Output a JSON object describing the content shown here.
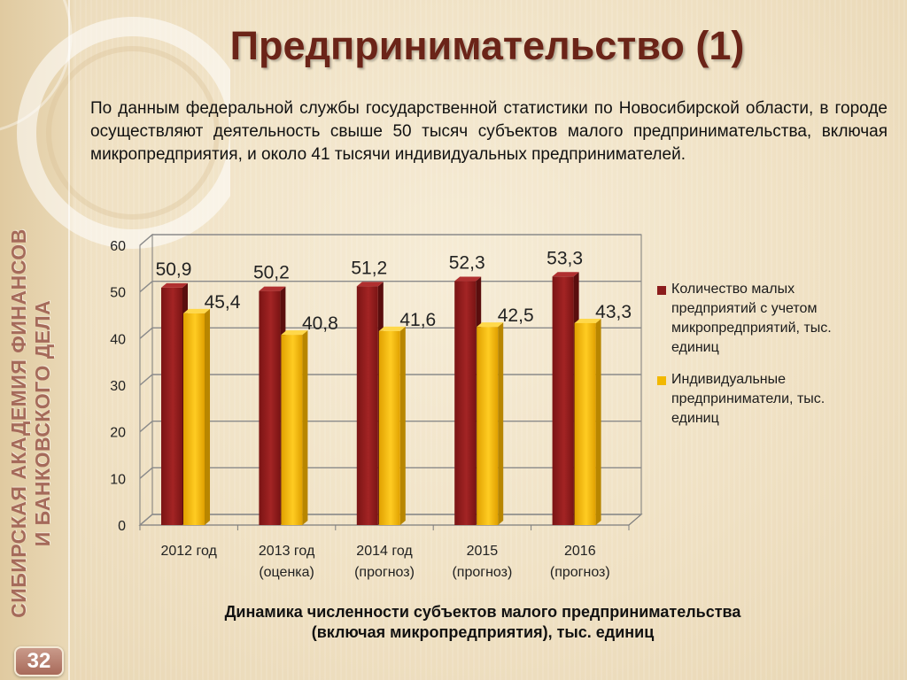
{
  "slide": {
    "title": "Предпринимательство (1)",
    "intro": "По данным федеральной службы государственной статистики по Новосибирской области, в городе осуществляют деятельность свыше 50 тысяч субъектов малого предпринимательства, включая микропредприятия, и около 41 тысячи индивидуальных предпринимателей.",
    "vertical_title_line1": "СИБИРСКАЯ АКАДЕМИЯ ФИНАНСОВ",
    "vertical_title_line2": "И БАНКОВСКОГО ДЕЛА",
    "page_number": "32",
    "caption_line1": "Динамика численности субъектов малого предпринимательства",
    "caption_line2": "(включая микропредприятия), тыс. единиц"
  },
  "colors": {
    "series1": "#8b1c1c",
    "series2": "#f2b800"
  },
  "chart_data": {
    "type": "bar",
    "categories": [
      [
        "2012 год"
      ],
      [
        "2013 год",
        "(оценка)"
      ],
      [
        "2014 год",
        "(прогноз)"
      ],
      [
        "2015",
        "(прогноз)"
      ],
      [
        "2016",
        "(прогноз)"
      ]
    ],
    "series": [
      {
        "name": "Количество малых предприятий с учетом микропредприятий, тыс. единиц",
        "values": [
          50.9,
          50.2,
          51.2,
          52.3,
          53.3
        ],
        "labels": [
          "50,9",
          "50,2",
          "51,2",
          "52,3",
          "53,3"
        ]
      },
      {
        "name": "Индивидуальные предприниматели, тыс. единиц",
        "values": [
          45.4,
          40.8,
          41.6,
          42.5,
          43.3
        ],
        "labels": [
          "45,4",
          "40,8",
          "41,6",
          "42,5",
          "43,3"
        ]
      }
    ],
    "legend_lines": [
      [
        "Количество малых",
        "предприятий с учетом",
        "микропредприятий, тыс.",
        "единиц"
      ],
      [
        "Индивидуальные",
        "предприниматели, тыс.",
        "единиц"
      ]
    ],
    "yticks": [
      "0",
      "10",
      "20",
      "30",
      "40",
      "50",
      "60"
    ],
    "ylim": [
      0,
      60
    ],
    "grid": true,
    "legend_position": "right",
    "xlabel": "",
    "ylabel": ""
  }
}
